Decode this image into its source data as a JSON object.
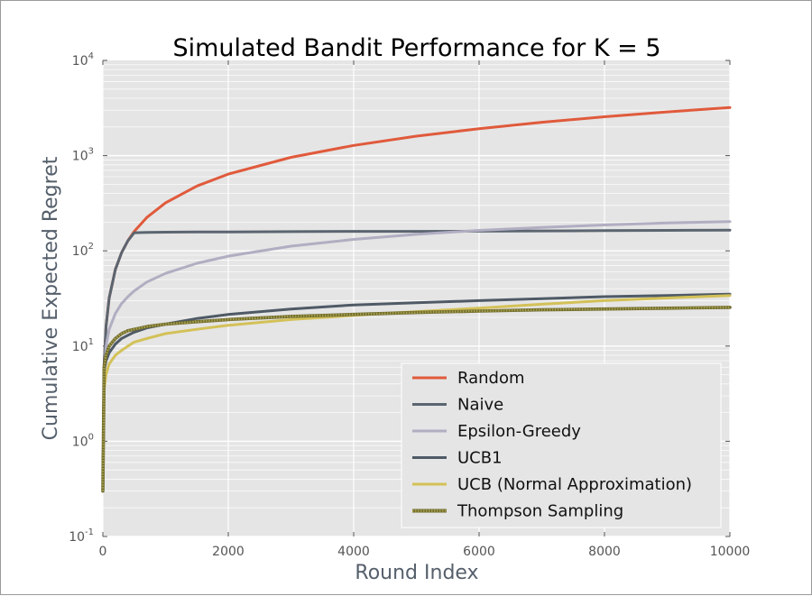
{
  "chart_data": {
    "type": "line",
    "title": "Simulated Bandit Performance for K = 5",
    "xlabel": "Round Index",
    "ylabel": "Cumulative Expected Regret",
    "xlim": [
      0,
      10000
    ],
    "ylim": [
      0.1,
      10000
    ],
    "yscale": "log",
    "grid": true,
    "legend_position": "lower-right",
    "x_ticks": [
      {
        "value": 0,
        "label": "0"
      },
      {
        "value": 2000,
        "label": "2000"
      },
      {
        "value": 4000,
        "label": "4000"
      },
      {
        "value": 6000,
        "label": "6000"
      },
      {
        "value": 8000,
        "label": "8000"
      },
      {
        "value": 10000,
        "label": "10000"
      }
    ],
    "y_ticks": [
      {
        "value": 0.1,
        "base": "10",
        "exp": "-1"
      },
      {
        "value": 1,
        "base": "10",
        "exp": "0"
      },
      {
        "value": 10,
        "base": "10",
        "exp": "1"
      },
      {
        "value": 100,
        "base": "10",
        "exp": "2"
      },
      {
        "value": 1000,
        "base": "10",
        "exp": "3"
      },
      {
        "value": 10000,
        "base": "10",
        "exp": "4"
      }
    ],
    "x": [
      0,
      20,
      50,
      100,
      200,
      300,
      400,
      500,
      700,
      1000,
      1500,
      2000,
      3000,
      4000,
      5000,
      6000,
      7000,
      8000,
      9000,
      10000
    ],
    "series": [
      {
        "name": "Random",
        "color": "#e05a3c",
        "values": [
          0.3,
          6.4,
          16,
          32,
          64,
          96,
          128,
          160,
          224,
          320,
          480,
          640,
          960,
          1280,
          1600,
          1920,
          2240,
          2560,
          2880,
          3200
        ]
      },
      {
        "name": "Naive",
        "color": "#5b6570",
        "values": [
          0.3,
          6.4,
          16,
          32,
          64,
          96,
          128,
          155,
          156,
          157,
          158,
          158,
          159,
          160,
          160,
          161,
          162,
          163,
          164,
          165
        ]
      },
      {
        "name": "Epsilon-Greedy",
        "color": "#b1aec2",
        "values": [
          0.3,
          5,
          10,
          15,
          22,
          28,
          33,
          38,
          47,
          58,
          74,
          88,
          112,
          132,
          149,
          164,
          176,
          187,
          196,
          203
        ]
      },
      {
        "name": "UCB1",
        "color": "#4f5a66",
        "values": [
          0.3,
          5.5,
          7,
          8.5,
          10.5,
          12,
          13,
          14,
          15.5,
          17,
          19.5,
          21.5,
          24.5,
          27,
          28.5,
          30,
          31.5,
          33,
          34,
          35
        ]
      },
      {
        "name": "UCB (Normal Approximation)",
        "color": "#d3c158",
        "values": [
          0.3,
          3.5,
          5,
          6.5,
          8,
          9,
          10,
          11,
          12,
          13.5,
          15,
          16.5,
          19,
          21,
          23,
          25,
          27.5,
          30,
          32,
          34
        ]
      },
      {
        "name": "Thompson Sampling",
        "color": "#a7a24c",
        "values": [
          0.3,
          6,
          8,
          10,
          12,
          13.5,
          14.5,
          15,
          16,
          17,
          18,
          19,
          20.5,
          21.5,
          22.5,
          23.3,
          24,
          24.5,
          25,
          25.5
        ]
      }
    ]
  }
}
